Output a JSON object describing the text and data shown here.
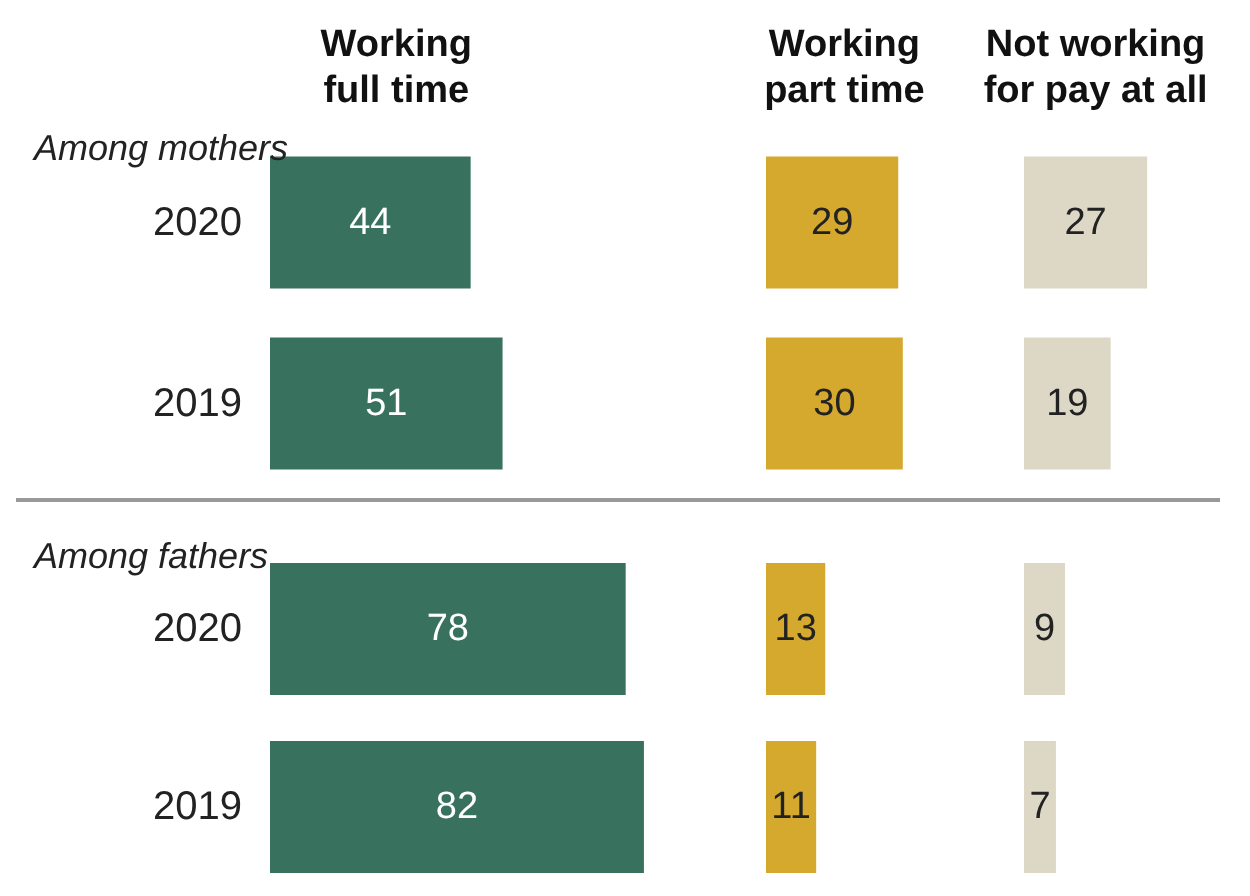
{
  "chart_data": [
    {
      "type": "bar",
      "orientation": "horizontal",
      "data_labels": true,
      "tick_labels": "y",
      "title": "Working\nfull time",
      "categories": [
        "2020",
        "2019"
      ],
      "values": [
        44,
        51
      ],
      "color": "#38725f",
      "annotations": [
        "Among mothers"
      ]
    },
    {
      "type": "bar",
      "orientation": "horizontal",
      "data_labels": true,
      "tick_labels": false,
      "title": "Working\npart time",
      "categories": [
        "2020",
        "2019"
      ],
      "values": [
        29,
        30
      ],
      "color": "#d5a82e"
    },
    {
      "type": "bar",
      "orientation": "horizontal",
      "data_labels": true,
      "tick_labels": false,
      "title": "Not working\nfor pay at all",
      "categories": [
        "2020",
        "2019"
      ],
      "values": [
        27,
        19
      ],
      "color": "#dcd8c5"
    },
    {
      "type": "bar",
      "orientation": "horizontal",
      "data_labels": true,
      "tick_labels": "y",
      "categories": [
        "2020",
        "2019"
      ],
      "values": [
        78,
        82
      ],
      "color": "#38725f",
      "annotations": [
        "Among fathers"
      ]
    },
    {
      "type": "bar",
      "orientation": "horizontal",
      "data_labels": true,
      "tick_labels": false,
      "categories": [
        "2020",
        "2019"
      ],
      "values": [
        13,
        11
      ],
      "color": "#d5a82e"
    },
    {
      "type": "bar",
      "orientation": "horizontal",
      "data_labels": true,
      "tick_labels": false,
      "categories": [
        "2020",
        "2019"
      ],
      "values": [
        9,
        7
      ],
      "color": "#dcd8c5"
    }
  ]
}
